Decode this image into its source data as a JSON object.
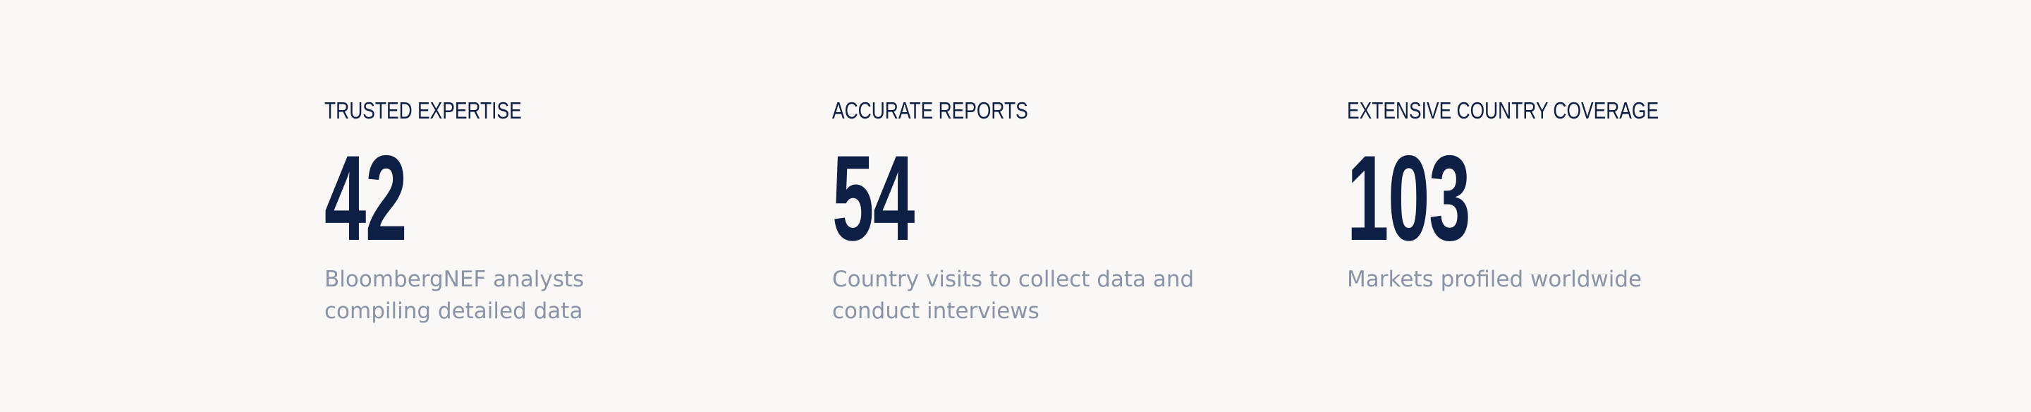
{
  "stats": [
    {
      "label": "TRUSTED EXPERTISE",
      "number": "42",
      "description": "BloombergNEF analysts compiling detailed data"
    },
    {
      "label": "ACCURATE REPORTS",
      "number": "54",
      "description": "Country visits to collect data and conduct interviews"
    },
    {
      "label": "EXTENSIVE COUNTRY COVERAGE",
      "number": "103",
      "description": "Markets profiled worldwide"
    }
  ],
  "colors": {
    "background": "#faf8f7",
    "heading": "#0e1f45",
    "muted": "#8a93a6"
  }
}
